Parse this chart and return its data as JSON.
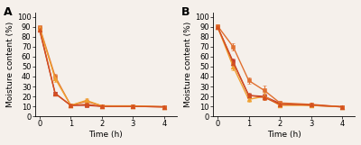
{
  "panel_A": {
    "label": "A",
    "series": [
      {
        "x": [
          0,
          0.5,
          1.0,
          1.5,
          2.0,
          3.0,
          4.0
        ],
        "y": [
          88,
          23,
          11,
          11,
          10,
          10,
          9.5
        ],
        "yerr": [
          1.2,
          1.5,
          0.8,
          0.8,
          0.5,
          0.5,
          0.4
        ],
        "color": "#c0392b",
        "marker": "s",
        "linestyle": "-"
      },
      {
        "x": [
          0,
          0.5,
          1.0,
          1.5,
          2.0,
          3.0,
          4.0
        ],
        "y": [
          90,
          40,
          11,
          15,
          10.5,
          10,
          9.5
        ],
        "yerr": [
          1.0,
          2.5,
          1.0,
          2.0,
          0.5,
          0.5,
          0.4
        ],
        "color": "#e07030",
        "marker": "s",
        "linestyle": "-"
      },
      {
        "x": [
          0,
          0.5,
          1.0,
          1.5,
          2.0,
          3.0,
          4.0
        ],
        "y": [
          89,
          38,
          11,
          16,
          10.5,
          10.5,
          9.5
        ],
        "yerr": [
          1.5,
          3.0,
          1.0,
          2.5,
          0.5,
          0.5,
          0.4
        ],
        "color": "#f0a030",
        "marker": "^",
        "linestyle": "-"
      },
      {
        "x": [
          0,
          0.5,
          1.0,
          1.5,
          2.0,
          3.0,
          4.0
        ],
        "y": [
          87,
          23,
          11,
          12,
          10,
          10,
          9.5
        ],
        "yerr": [
          1.5,
          1.5,
          0.8,
          1.0,
          0.5,
          0.5,
          0.4
        ],
        "color": "#d45020",
        "marker": "^",
        "linestyle": "-"
      }
    ],
    "xlabel": "Time (h)",
    "ylabel": "Moisture content (%)",
    "xlim": [
      -0.15,
      4.4
    ],
    "ylim": [
      0,
      104
    ],
    "xticks": [
      0,
      1,
      2,
      3,
      4
    ],
    "yticks": [
      0,
      10,
      20,
      30,
      40,
      50,
      60,
      70,
      80,
      90,
      100
    ]
  },
  "panel_B": {
    "label": "B",
    "series": [
      {
        "x": [
          0,
          0.5,
          1.0,
          1.5,
          2.0,
          3.0,
          4.0
        ],
        "y": [
          90,
          55,
          21,
          20,
          13,
          11,
          9.5
        ],
        "yerr": [
          1.2,
          3.0,
          2.0,
          2.5,
          1.5,
          0.8,
          0.4
        ],
        "color": "#c0392b",
        "marker": "s",
        "linestyle": "-"
      },
      {
        "x": [
          0,
          0.5,
          1.0,
          1.5,
          2.0,
          3.0,
          4.0
        ],
        "y": [
          91,
          70,
          36,
          26,
          13.5,
          12,
          9.5
        ],
        "yerr": [
          1.2,
          3.5,
          3.5,
          4.5,
          2.0,
          1.5,
          0.4
        ],
        "color": "#e07030",
        "marker": "s",
        "linestyle": "-"
      },
      {
        "x": [
          0,
          0.5,
          1.0,
          1.5,
          2.0,
          3.0,
          4.0
        ],
        "y": [
          90,
          50,
          17,
          20,
          11,
          11,
          9.5
        ],
        "yerr": [
          1.2,
          3.5,
          2.0,
          3.5,
          1.5,
          1.0,
          0.4
        ],
        "color": "#f0a030",
        "marker": "^",
        "linestyle": "-"
      },
      {
        "x": [
          0,
          0.5,
          1.0,
          1.5,
          2.0,
          3.0,
          4.0
        ],
        "y": [
          90,
          54,
          21,
          19,
          12,
          11.5,
          9.5
        ],
        "yerr": [
          1.2,
          3.0,
          2.5,
          3.0,
          1.5,
          0.8,
          0.4
        ],
        "color": "#d45020",
        "marker": "^",
        "linestyle": "-"
      }
    ],
    "xlabel": "Time (h)",
    "ylabel": "Moisture content (%)",
    "xlim": [
      -0.15,
      4.4
    ],
    "ylim": [
      0,
      104
    ],
    "xticks": [
      0,
      1,
      2,
      3,
      4
    ],
    "yticks": [
      0,
      10,
      20,
      30,
      40,
      50,
      60,
      70,
      80,
      90,
      100
    ]
  },
  "background_color": "#f5f0eb",
  "font_size": 6.5,
  "markersize": 3.5,
  "linewidth": 1.0,
  "capsize": 1.5,
  "elinewidth": 0.7
}
